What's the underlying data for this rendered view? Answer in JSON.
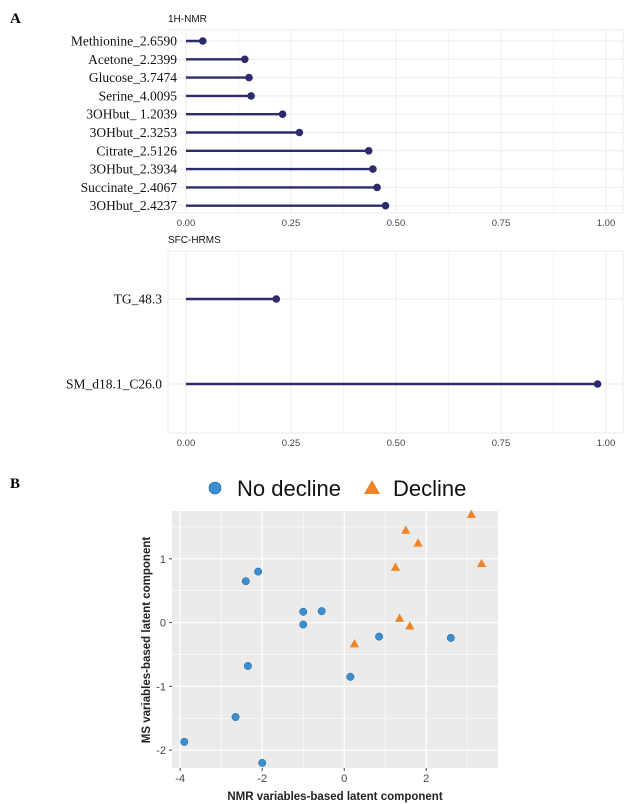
{
  "panels": {
    "a_label": "A",
    "b_label": "B"
  },
  "colors": {
    "lollipop": "#2e2a6e",
    "no_decline": "#3b8fd0",
    "decline": "#ee8427",
    "panel_bg_b": "#ebebeb",
    "grid_a": "#ebebeb"
  },
  "chart_data": [
    {
      "type": "lollipop",
      "title": "1H-NMR",
      "categories": [
        "Methionine_2.6590",
        "Acetone_2.2399",
        "Glucose_3.7474",
        "Serine_4.0095",
        "3OHbut_ 1.2039",
        "3OHbut_2.3253",
        "Citrate_2.5126",
        "3OHbut_2.3934",
        "Succinate_2.4067",
        "3OHbut_2.4237"
      ],
      "values": [
        0.04,
        0.14,
        0.15,
        0.155,
        0.23,
        0.27,
        0.435,
        0.445,
        0.455,
        0.475
      ],
      "xlim": [
        0,
        1
      ],
      "xticks": [
        "0.00",
        "0.25",
        "0.50",
        "0.75",
        "1.00"
      ],
      "grid": true
    },
    {
      "type": "lollipop",
      "title": "SFC-HRMS",
      "categories": [
        "TG_48.3",
        "SM_d18.1_C26.0"
      ],
      "values": [
        0.215,
        0.98
      ],
      "xlim": [
        0,
        1
      ],
      "xticks": [
        "0.00",
        "0.25",
        "0.50",
        "0.75",
        "1.00"
      ],
      "grid": true
    },
    {
      "type": "scatter",
      "xlabel": "NMR variables-based latent component",
      "ylabel": "MS variables-based latent component",
      "xlim": [
        -4.2,
        3.75
      ],
      "ylim": [
        -2.28,
        1.75
      ],
      "xticks": [
        "-4",
        "-2",
        "0",
        "2"
      ],
      "yticks": [
        "-2",
        "-1",
        "0",
        "1"
      ],
      "legend_position": "top",
      "grid": true,
      "series": [
        {
          "name": "No decline",
          "marker": "circle",
          "points": [
            [
              -3.9,
              -1.87
            ],
            [
              -2.65,
              -1.48
            ],
            [
              -2.35,
              -0.68
            ],
            [
              -2.4,
              0.65
            ],
            [
              -2.1,
              0.8
            ],
            [
              -2.0,
              -2.2
            ],
            [
              -1.0,
              0.17
            ],
            [
              -1.0,
              -0.03
            ],
            [
              -0.55,
              0.18
            ],
            [
              0.15,
              -0.85
            ],
            [
              0.85,
              -0.22
            ],
            [
              2.6,
              -0.24
            ]
          ]
        },
        {
          "name": "Decline",
          "marker": "triangle",
          "points": [
            [
              0.25,
              -0.33
            ],
            [
              1.25,
              0.87
            ],
            [
              1.35,
              0.07
            ],
            [
              1.5,
              1.45
            ],
            [
              1.6,
              -0.05
            ],
            [
              1.8,
              1.25
            ],
            [
              3.1,
              1.7
            ],
            [
              3.35,
              0.93
            ]
          ]
        }
      ]
    }
  ]
}
